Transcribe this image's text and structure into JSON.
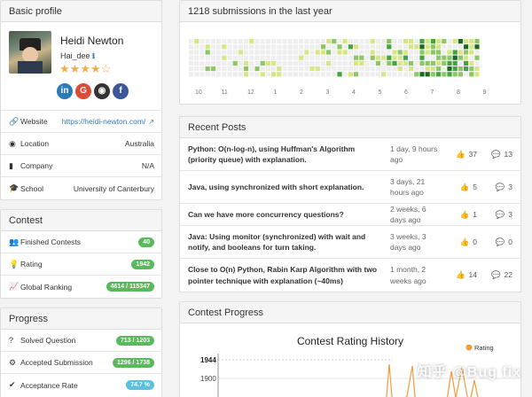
{
  "profile": {
    "header": "Basic profile",
    "name": "Heidi Newton",
    "username": "Hai_dee",
    "info_icon": "info-icon",
    "rating_stars": 4,
    "max_stars": 5,
    "social": [
      {
        "name": "linkedin",
        "glyph": "in",
        "color": "#2b7bb9"
      },
      {
        "name": "google",
        "glyph": "G",
        "color": "#dd4b39"
      },
      {
        "name": "github",
        "glyph": "◉",
        "color": "#333333"
      },
      {
        "name": "facebook",
        "glyph": "f",
        "color": "#3b5998"
      }
    ],
    "rows": [
      {
        "icon": "link-icon",
        "glyph": "🔗",
        "label": "Website",
        "value": "https://heidi-newton.com/",
        "link": true
      },
      {
        "icon": "location-icon",
        "glyph": "◉",
        "label": "Location",
        "value": "Australia"
      },
      {
        "icon": "building-icon",
        "glyph": "▮",
        "label": "Company",
        "value": "N/A"
      },
      {
        "icon": "graduation-cap-icon",
        "glyph": "🎓",
        "label": "School",
        "value": "University of Canterbury"
      }
    ]
  },
  "contest": {
    "header": "Contest",
    "rows": [
      {
        "icon": "users-icon",
        "glyph": "👥",
        "label": "Finished Contests",
        "value": "40"
      },
      {
        "icon": "bulb-icon",
        "glyph": "💡",
        "label": "Rating",
        "value": "1942"
      },
      {
        "icon": "line-chart-icon",
        "glyph": "📈",
        "label": "Global Ranking",
        "value": "4614 / 115347"
      }
    ]
  },
  "progress": {
    "header": "Progress",
    "rows": [
      {
        "icon": "question-icon",
        "glyph": "?",
        "label": "Solved Question",
        "value": "713 / 1203"
      },
      {
        "icon": "gear-icon",
        "glyph": "⚙",
        "label": "Accepted Submission",
        "value": "1296 / 1738"
      },
      {
        "icon": "check-icon",
        "glyph": "✔",
        "label": "Acceptance Rate",
        "value": "74.7 %",
        "color": "#5bc0de"
      }
    ]
  },
  "submissions": {
    "header": "1218 submissions in the last year",
    "months": [
      "10",
      "11",
      "12",
      "1",
      "2",
      "3",
      "4",
      "5",
      "6",
      "7",
      "8",
      "9"
    ],
    "colors": [
      "#eeeeee",
      "#d6e685",
      "#8cc665",
      "#44a340",
      "#1e6823"
    ]
  },
  "posts": {
    "header": "Recent Posts",
    "items": [
      {
        "title": "Python: O(n-log-n), using Huffman's Algorithm (priority queue) with explanation.",
        "date": "1 day, 9 hours ago",
        "votes": "37",
        "comments": "13"
      },
      {
        "title": "Java, using synchronized with short explanation.",
        "date": "3 days, 21 hours ago",
        "votes": "5",
        "comments": "3"
      },
      {
        "title": "Can we have more concurrency questions?",
        "date": "2 weeks, 6 days ago",
        "votes": "1",
        "comments": "3"
      },
      {
        "title": "Java: Using monitor (synchronized) with wait and notify, and booleans for turn taking.",
        "date": "3 weeks, 3 days ago",
        "votes": "0",
        "comments": "0"
      },
      {
        "title": "Close to O(n) Python, Rabin Karp Algorithm with two pointer technique with explanation (~40ms)",
        "date": "1 month, 2 weeks ago",
        "votes": "14",
        "comments": "22"
      }
    ]
  },
  "contest_progress": {
    "header": "Contest Progress"
  },
  "chart_data": {
    "type": "line",
    "title": "Contest Rating History",
    "series": [
      {
        "name": "Rating",
        "color": "#f39c3c"
      }
    ],
    "y_ticks": [
      "1944",
      "1900"
    ],
    "legend": "top-right"
  },
  "watermark": "知乎 @Bug fix"
}
